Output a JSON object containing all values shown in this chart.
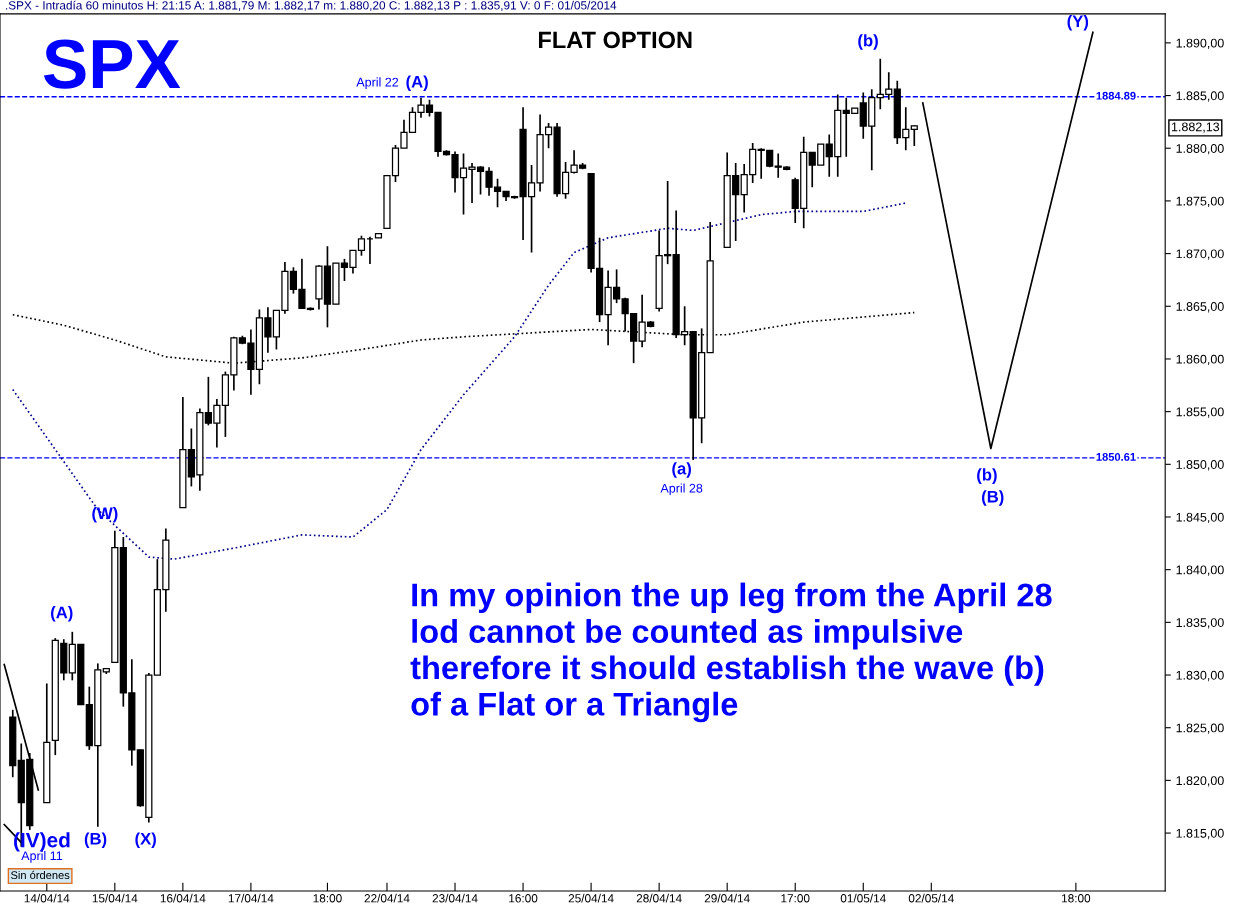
{
  "chart_data": {
    "type": "candlestick",
    "title": "FLAT OPTION",
    "color": "#000000",
    "categories": [
      null,
      null,
      null,
      null,
      null,
      "14/04/14",
      null,
      null,
      null,
      null,
      null,
      null,
      null,
      "15/04/14",
      null,
      null,
      null,
      null,
      null,
      null,
      null,
      "16/04/14",
      null,
      null,
      null,
      null,
      null,
      null,
      null,
      "17/04/14",
      null,
      null,
      null,
      null,
      null,
      null,
      null,
      null,
      "18:00",
      null,
      null,
      null,
      null,
      null,
      null,
      "22/04/14",
      null,
      null,
      null,
      null,
      null,
      null,
      null,
      "23/04/14",
      null,
      null,
      null,
      null,
      null,
      null,
      null,
      "16:00",
      null,
      null,
      null,
      null,
      null,
      null,
      null,
      "25/04/14",
      null,
      null,
      null,
      null,
      null,
      null,
      null,
      "28/04/14",
      null,
      null,
      null,
      null,
      null,
      null,
      null,
      "29/04/14",
      null,
      null,
      null,
      null,
      null,
      null,
      null,
      "17:00",
      null,
      null,
      null,
      null,
      null,
      null,
      null,
      "01/05/14",
      null,
      null,
      null,
      null,
      null,
      null,
      null,
      "02/05/14",
      null,
      null,
      null,
      null,
      null,
      null,
      null,
      null,
      null,
      null,
      null,
      null,
      null,
      null,
      null,
      null,
      "18:00",
      null,
      null,
      null,
      null,
      null,
      null,
      null,
      null,
      null,
      null
    ],
    "ohlc": [
      null,
      [
        1826.0,
        1826.7,
        1820.3,
        1821.4
      ],
      [
        1821.9,
        1823.5,
        1813.7,
        1817.9
      ],
      [
        1822.0,
        1822.6,
        1815.3,
        1815.7
      ],
      null,
      [
        1817.9,
        1829.2,
        1817.9,
        1823.6
      ],
      [
        1823.8,
        1833.5,
        1822.4,
        1833.3
      ],
      [
        1833.0,
        1833.4,
        1829.5,
        1830.2
      ],
      [
        1830.2,
        1834.1,
        1829.5,
        1832.9
      ],
      [
        1832.9,
        1832.9,
        1827.2,
        1827.2
      ],
      [
        1827.2,
        1828.9,
        1822.9,
        1823.3
      ],
      [
        1823.3,
        1831.1,
        1815.6,
        1830.5
      ],
      [
        1830.3,
        1830.6,
        1830.1,
        1830.6
      ],
      [
        1831.2,
        1843.7,
        1831.2,
        1842.1
      ],
      [
        1842.1,
        1843.1,
        1827.0,
        1828.3
      ],
      [
        1828.3,
        1831.5,
        1821.4,
        1822.9
      ],
      [
        1822.9,
        1822.9,
        1817.5,
        1817.6
      ],
      [
        1816.5,
        1830.2,
        1816.0,
        1830.0
      ],
      [
        1830.0,
        1841.0,
        1830.0,
        1838.1
      ],
      [
        1838.1,
        1843.9,
        1836.0,
        1842.8
      ],
      null,
      [
        1845.9,
        1856.4,
        1845.9,
        1851.4
      ],
      [
        1851.4,
        1853.4,
        1847.9,
        1848.8
      ],
      [
        1849.0,
        1855.3,
        1847.5,
        1854.9
      ],
      [
        1854.9,
        1858.3,
        1853.7,
        1853.9
      ],
      [
        1853.9,
        1856.2,
        1851.6,
        1855.6
      ],
      [
        1855.6,
        1858.8,
        1852.6,
        1858.5
      ],
      [
        1858.5,
        1862.1,
        1857.0,
        1862.0
      ],
      [
        1862.0,
        1862.2,
        1861.4,
        1861.5
      ],
      [
        1861.5,
        1862.8,
        1856.6,
        1859.0
      ],
      [
        1859.0,
        1864.7,
        1857.6,
        1863.9
      ],
      [
        1863.9,
        1864.9,
        1860.6,
        1862.1
      ],
      [
        1862.1,
        1864.6,
        1860.9,
        1864.6
      ],
      [
        1864.6,
        1869.2,
        1864.3,
        1868.3
      ],
      [
        1868.3,
        1868.7,
        1866.2,
        1866.6
      ],
      [
        1866.6,
        1869.5,
        1864.8,
        1864.8
      ],
      [
        1864.8,
        1864.9,
        1864.6,
        1864.7
      ],
      [
        1865.7,
        1868.9,
        1864.7,
        1868.8
      ],
      [
        1868.8,
        1870.7,
        1863.0,
        1865.2
      ],
      [
        1865.2,
        1869.1,
        1865.2,
        1869.1
      ],
      [
        1869.1,
        1869.5,
        1867.4,
        1868.7
      ],
      [
        1868.7,
        1870.3,
        1868.1,
        1870.3
      ],
      [
        1870.3,
        1871.7,
        1869.8,
        1871.4
      ],
      [
        1871.4,
        1871.6,
        1869.0,
        1871.4
      ],
      [
        1871.5,
        1871.9,
        1871.5,
        1871.9
      ],
      [
        1872.4,
        1877.4,
        1872.4,
        1877.4
      ],
      [
        1877.4,
        1880.3,
        1876.8,
        1880.0
      ],
      [
        1880.0,
        1882.7,
        1880.0,
        1881.5
      ],
      [
        1881.5,
        1883.9,
        1881.5,
        1883.4
      ],
      [
        1883.4,
        1884.8,
        1882.9,
        1884.1
      ],
      [
        1884.1,
        1884.6,
        1883.0,
        1883.4
      ],
      [
        1883.4,
        1883.4,
        1879.2,
        1879.7
      ],
      [
        1879.7,
        1879.8,
        1879.3,
        1879.4
      ],
      [
        1879.4,
        1879.7,
        1875.8,
        1877.2
      ],
      [
        1877.2,
        1879.5,
        1873.7,
        1878.1
      ],
      [
        1878.0,
        1878.6,
        1874.8,
        1878.2
      ],
      [
        1878.2,
        1878.3,
        1875.6,
        1877.8
      ],
      [
        1877.8,
        1878.2,
        1875.5,
        1876.3
      ],
      [
        1876.3,
        1877.1,
        1874.4,
        1875.9
      ],
      [
        1875.9,
        1875.9,
        1875.0,
        1875.4
      ],
      [
        1875.4,
        1875.5,
        1875.2,
        1875.3
      ],
      [
        1881.8,
        1883.9,
        1871.3,
        1875.4
      ],
      [
        1875.4,
        1878.4,
        1870.1,
        1876.7
      ],
      [
        1876.7,
        1883.2,
        1875.9,
        1881.3
      ],
      [
        1881.3,
        1882.4,
        1880.0,
        1882.0
      ],
      [
        1882.0,
        1882.4,
        1875.4,
        1875.7
      ],
      [
        1875.7,
        1878.7,
        1875.2,
        1877.7
      ],
      [
        1877.7,
        1879.8,
        1877.6,
        1878.4
      ],
      [
        1878.4,
        1878.6,
        1878.0,
        1878.1
      ],
      [
        1877.6,
        1877.6,
        1868.2,
        1868.6
      ],
      [
        1868.6,
        1871.5,
        1863.5,
        1864.2
      ],
      [
        1864.2,
        1868.4,
        1861.3,
        1866.8
      ],
      [
        1866.8,
        1868.5,
        1865.3,
        1865.7
      ],
      [
        1865.7,
        1865.8,
        1862.6,
        1864.3
      ],
      [
        1864.3,
        1864.3,
        1859.6,
        1861.7
      ],
      [
        1861.7,
        1866.1,
        1861.1,
        1863.5
      ],
      [
        1863.5,
        1863.6,
        1863.0,
        1863.1
      ],
      [
        1864.8,
        1872.2,
        1864.5,
        1869.8
      ],
      [
        1869.8,
        1876.9,
        1869.0,
        1869.9
      ],
      [
        1869.9,
        1874.1,
        1862.0,
        1862.3
      ],
      [
        1862.3,
        1865.0,
        1861.3,
        1862.6
      ],
      [
        1862.6,
        1862.6,
        1850.4,
        1854.4
      ],
      [
        1854.4,
        1862.9,
        1852.0,
        1860.6
      ],
      [
        1860.6,
        1873.0,
        1860.6,
        1869.3
      ],
      null,
      [
        1870.6,
        1879.6,
        1870.6,
        1877.4
      ],
      [
        1877.4,
        1878.6,
        1871.2,
        1875.6
      ],
      [
        1875.6,
        1878.5,
        1873.9,
        1877.5
      ],
      [
        1877.5,
        1880.5,
        1876.7,
        1879.9
      ],
      [
        1879.9,
        1880.0,
        1877.1,
        1879.8
      ],
      [
        1879.8,
        1879.8,
        1878.2,
        1878.3
      ],
      [
        1878.3,
        1879.5,
        1877.2,
        1878.2
      ],
      [
        1878.2,
        1878.3,
        1877.9,
        1878.0
      ],
      [
        1877.0,
        1877.2,
        1872.9,
        1874.3
      ],
      [
        1874.3,
        1881.1,
        1872.4,
        1879.6
      ],
      [
        1879.6,
        1879.6,
        1876.3,
        1878.4
      ],
      [
        1878.4,
        1880.4,
        1878.4,
        1880.4
      ],
      [
        1880.4,
        1881.3,
        1877.3,
        1879.2
      ],
      [
        1879.2,
        1885.1,
        1877.3,
        1883.6
      ],
      [
        1883.6,
        1884.8,
        1879.2,
        1883.3
      ],
      [
        1883.3,
        1883.8,
        1883.3,
        1883.8
      ],
      [
        1884.3,
        1885.3,
        1880.9,
        1882.1
      ],
      [
        1882.1,
        1885.6,
        1877.9,
        1884.8
      ],
      [
        1884.8,
        1888.5,
        1883.7,
        1885.1
      ],
      [
        1885.1,
        1887.2,
        1884.6,
        1885.6
      ],
      [
        1885.6,
        1886.4,
        1880.4,
        1881.0
      ],
      [
        1881.0,
        1883.9,
        1879.8,
        1881.8
      ],
      [
        1881.79,
        1882.17,
        1880.2,
        1882.13
      ],
      null,
      null,
      null,
      null,
      null,
      null,
      null,
      null,
      null,
      null,
      null,
      null,
      null,
      null,
      null,
      null,
      null,
      null,
      null,
      null,
      null,
      null,
      null,
      null,
      null,
      null,
      null,
      null,
      null
    ],
    "series": [
      {
        "type": "line",
        "color": "#00008b",
        "line_style": "dotted",
        "values": [
          null,
          1857.1,
          null,
          null,
          null,
          null,
          null,
          null,
          null,
          null,
          null,
          1845.7,
          null,
          null,
          null,
          null,
          null,
          1841.2,
          null,
          null,
          1841.0,
          null,
          null,
          null,
          null,
          null,
          null,
          null,
          1842.2,
          null,
          null,
          null,
          null,
          null,
          null,
          1843.3,
          null,
          null,
          null,
          null,
          null,
          1843.1,
          null,
          null,
          null,
          1845.7,
          null,
          null,
          null,
          1851.4,
          null,
          null,
          null,
          null,
          1856.6,
          null,
          null,
          null,
          null,
          null,
          1862.1,
          null,
          null,
          null,
          1867.0,
          null,
          null,
          1870.1,
          null,
          null,
          null,
          1871.5,
          null,
          null,
          null,
          null,
          null,
          null,
          1872.4,
          null,
          null,
          1872.2,
          null,
          null,
          null,
          null,
          null,
          null,
          null,
          1873.7,
          null,
          null,
          null,
          1874.0,
          null,
          null,
          null,
          null,
          null,
          null,
          null,
          1874.0,
          null,
          null,
          null,
          null,
          1874.8,
          null,
          null,
          null,
          null,
          null,
          null,
          null,
          null,
          null,
          null,
          null,
          null,
          null,
          null,
          null,
          null,
          null,
          null,
          null,
          null,
          null,
          null,
          null,
          null,
          null,
          null,
          null,
          null,
          null,
          null
        ]
      },
      {
        "type": "line",
        "color": "#000000",
        "line_style": "dotted",
        "values": [
          null,
          1864.2,
          null,
          null,
          null,
          null,
          null,
          1863.2,
          null,
          null,
          null,
          null,
          null,
          1861.8,
          null,
          null,
          null,
          null,
          null,
          1860.2,
          null,
          null,
          null,
          null,
          null,
          null,
          null,
          1859.6,
          null,
          null,
          null,
          null,
          null,
          null,
          null,
          1860.1,
          null,
          null,
          null,
          null,
          null,
          null,
          1860.9,
          null,
          null,
          null,
          null,
          null,
          null,
          1861.8,
          null,
          null,
          null,
          null,
          1862.1,
          null,
          null,
          null,
          null,
          null,
          null,
          null,
          null,
          null,
          null,
          null,
          null,
          null,
          null,
          1862.8,
          null,
          null,
          null,
          null,
          null,
          null,
          null,
          null,
          null,
          null,
          1862.3,
          null,
          null,
          null,
          null,
          1862.3,
          null,
          null,
          null,
          null,
          null,
          null,
          null,
          null,
          1863.5,
          null,
          null,
          null,
          null,
          null,
          null,
          null,
          null,
          null,
          null,
          null,
          null,
          1864.4,
          null,
          null,
          null,
          null,
          null,
          null,
          null,
          null,
          null,
          null,
          null,
          null,
          null,
          null,
          null,
          null,
          null,
          null,
          null,
          null,
          null,
          null,
          null,
          null,
          null,
          null,
          null,
          null,
          null
        ]
      },
      {
        "type": "line",
        "color": "#000000",
        "line_style": "solid",
        "values": [
          null,
          null,
          null,
          null,
          null,
          null,
          null,
          null,
          null,
          null,
          null,
          null,
          null,
          null,
          null,
          null,
          null,
          null,
          null,
          null,
          null,
          null,
          null,
          null,
          null,
          null,
          null,
          null,
          null,
          null,
          null,
          null,
          null,
          null,
          null,
          null,
          null,
          null,
          null,
          null,
          null,
          null,
          null,
          null,
          null,
          null,
          null,
          null,
          null,
          null,
          null,
          null,
          null,
          null,
          null,
          null,
          null,
          null,
          null,
          null,
          null,
          null,
          null,
          null,
          null,
          null,
          null,
          null,
          null,
          null,
          null,
          null,
          null,
          null,
          null,
          null,
          null,
          null,
          null,
          null,
          null,
          null,
          null,
          null,
          null,
          null,
          null,
          null,
          null,
          null,
          null,
          null,
          null,
          null,
          null,
          null,
          null,
          null,
          null,
          null,
          null,
          null,
          null,
          null,
          null,
          null,
          null,
          null,
          1884.3,
          null,
          null,
          null,
          null,
          null,
          null,
          null,
          1851.5,
          null,
          null,
          null,
          null,
          null,
          null,
          null,
          null,
          null,
          null,
          null,
          1891.0,
          null,
          null,
          null,
          null,
          null,
          null,
          null,
          null
        ]
      },
      {
        "type": "line",
        "color": "#000000",
        "line_style": "solid",
        "values": [
          1831.0,
          null,
          null,
          null,
          1819.1,
          null,
          null,
          null,
          null,
          null,
          null,
          null,
          null,
          null,
          null,
          null,
          null,
          null,
          null,
          null,
          null,
          null,
          null,
          null,
          null,
          null,
          null,
          null,
          null,
          null,
          null,
          null,
          null,
          null,
          null,
          null,
          null,
          null,
          null,
          null,
          null,
          null,
          null,
          null,
          null,
          null,
          null,
          null,
          null,
          null,
          null,
          null,
          null,
          null,
          null,
          null,
          null,
          null,
          null,
          null,
          null,
          null,
          null,
          null,
          null,
          null,
          null,
          null,
          null,
          null,
          null,
          null,
          null,
          null,
          null,
          null,
          null,
          null,
          null,
          null,
          null,
          null,
          null,
          null,
          null,
          null,
          null,
          null,
          null,
          null,
          null,
          null,
          null,
          null,
          null,
          null,
          null,
          null,
          null,
          null,
          null,
          null,
          null,
          null,
          null,
          null,
          null,
          null,
          null,
          null,
          null,
          null,
          null,
          null,
          null,
          null,
          null,
          null,
          null,
          null,
          null,
          null,
          null,
          null,
          null,
          null,
          null,
          null,
          null,
          null,
          null,
          null,
          null,
          null,
          null,
          null,
          null
        ]
      },
      {
        "type": "line",
        "color": "#000000",
        "line_style": "solid",
        "values": [
          1815.8,
          null,
          1814.1,
          null,
          null,
          null,
          null,
          null,
          null,
          null,
          null,
          null,
          null,
          null,
          null,
          null,
          null,
          null,
          null,
          null,
          null,
          null,
          null,
          null,
          null,
          null,
          null,
          null,
          null,
          null,
          null,
          null,
          null,
          null,
          null,
          null,
          null,
          null,
          null,
          null,
          null,
          null,
          null,
          null,
          null,
          null,
          null,
          null,
          null,
          null,
          null,
          null,
          null,
          null,
          null,
          null,
          null,
          null,
          null,
          null,
          null,
          null,
          null,
          null,
          null,
          null,
          null,
          null,
          null,
          null,
          null,
          null,
          null,
          null,
          null,
          null,
          null,
          null,
          null,
          null,
          null,
          null,
          null,
          null,
          null,
          null,
          null,
          null,
          null,
          null,
          null,
          null,
          null,
          null,
          null,
          null,
          null,
          null,
          null,
          null,
          null,
          null,
          null,
          null,
          null,
          null,
          null,
          null,
          null,
          null,
          null,
          null,
          null,
          null,
          null,
          null,
          null,
          null,
          null,
          null,
          null,
          null,
          null,
          null,
          null,
          null,
          null,
          null,
          null,
          null,
          null,
          null,
          null,
          null,
          null,
          null,
          null
        ]
      }
    ],
    "ref_lines": [
      {
        "axis": "y",
        "value": 1884.89,
        "label": "1884.89",
        "color": "#0000ff",
        "line_style": "dashed"
      },
      {
        "axis": "y",
        "value": 1850.61,
        "label": "1850.61",
        "color": "#0000ff",
        "line_style": "dashed"
      }
    ],
    "ylim": [
      1809.5,
      1892.75
    ],
    "yticks": [
      {
        "value": 1815,
        "label": "1.815,00"
      },
      {
        "value": 1820,
        "label": "1.820,00"
      },
      {
        "value": 1825,
        "label": "1.825,00"
      },
      {
        "value": 1830,
        "label": "1.830,00"
      },
      {
        "value": 1835,
        "label": "1.835,00"
      },
      {
        "value": 1840,
        "label": "1.840,00"
      },
      {
        "value": 1845,
        "label": "1.845,00"
      },
      {
        "value": 1850,
        "label": "1.850,00"
      },
      {
        "value": 1855,
        "label": "1.855,00"
      },
      {
        "value": 1860,
        "label": "1.860,00"
      },
      {
        "value": 1865,
        "label": "1.865,00"
      },
      {
        "value": 1870,
        "label": "1.870,00"
      },
      {
        "value": 1875,
        "label": "1.875,00"
      },
      {
        "value": 1880,
        "label": "1.880,00"
      },
      {
        "value": 1885,
        "label": "1.885,00"
      },
      {
        "value": 1890,
        "label": "1.890,00"
      }
    ],
    "grid": false,
    "annotations": [
      ".SPX - Intradía 60 minutos H: 21:15 A: 1.881,79 M: 1.882,17 m: 1.880,20 C: 1.882,13 P : 1.835,91 V: 0 F: 01/05/2014",
      "SPX",
      "In my opinion the up leg from the April 28\nlod cannot be counted as impulsive\ntherefore it should establish the wave (b)\nof a Flat or a Triangle",
      "Sin órdenes",
      "1.882,13",
      "April 22",
      "(A)",
      "(b)",
      "(Y)",
      "(a)",
      "April 28",
      "(b)",
      "(B)",
      "(W)",
      "(A)",
      "(B)",
      "(X)",
      "(IV)ed",
      "April 11"
    ]
  }
}
